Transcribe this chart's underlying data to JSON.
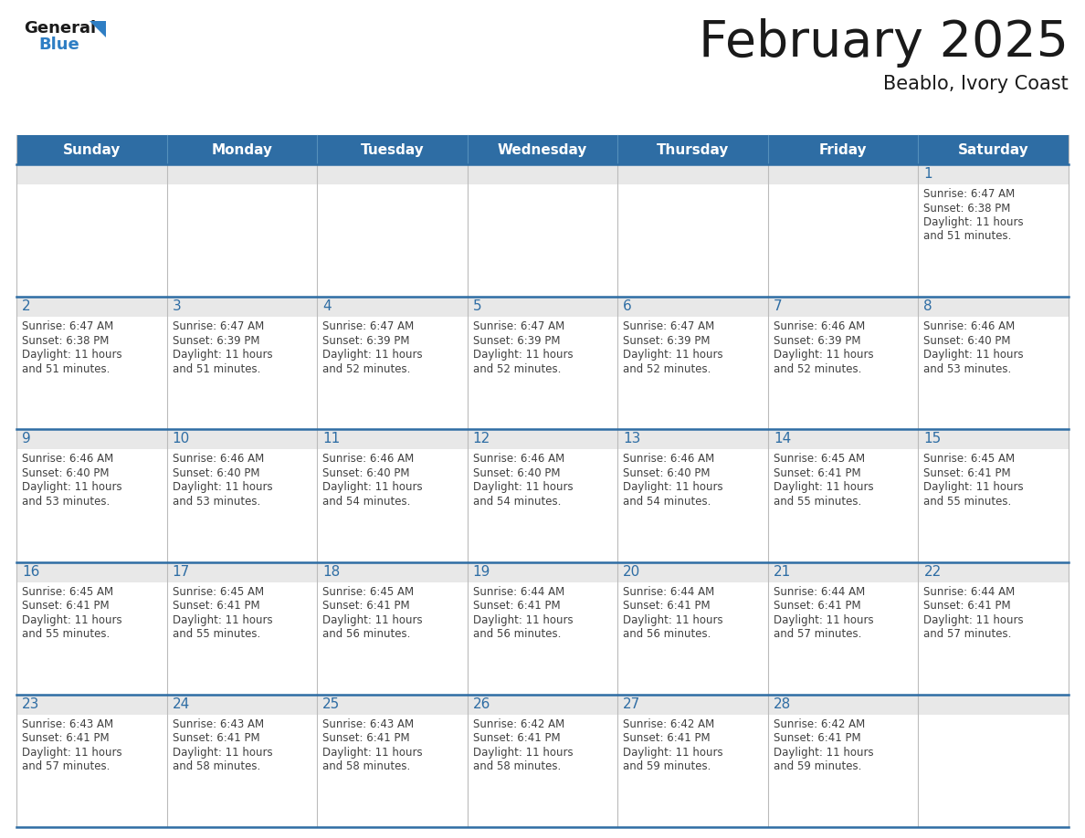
{
  "title": "February 2025",
  "subtitle": "Beablo, Ivory Coast",
  "days_of_week": [
    "Sunday",
    "Monday",
    "Tuesday",
    "Wednesday",
    "Thursday",
    "Friday",
    "Saturday"
  ],
  "header_bg_color": "#2E6DA4",
  "header_text_color": "#FFFFFF",
  "cell_bg_color": "#FFFFFF",
  "cell_top_bg_color": "#E8E8E8",
  "cell_border_color": "#AAAAAA",
  "row_line_color": "#2E6DA4",
  "day_number_color": "#2E6DA4",
  "info_text_color": "#404040",
  "title_color": "#1a1a1a",
  "subtitle_color": "#1a1a1a",
  "logo_general_color": "#1a1a1a",
  "logo_blue_color": "#2E7EC4",
  "background_color": "#FFFFFF",
  "calendar_data": [
    [
      null,
      null,
      null,
      null,
      null,
      null,
      {
        "day": 1,
        "sunrise": "6:47 AM",
        "sunset": "6:38 PM",
        "daylight": "11 hours and 51 minutes."
      }
    ],
    [
      {
        "day": 2,
        "sunrise": "6:47 AM",
        "sunset": "6:38 PM",
        "daylight": "11 hours and 51 minutes."
      },
      {
        "day": 3,
        "sunrise": "6:47 AM",
        "sunset": "6:39 PM",
        "daylight": "11 hours and 51 minutes."
      },
      {
        "day": 4,
        "sunrise": "6:47 AM",
        "sunset": "6:39 PM",
        "daylight": "11 hours and 52 minutes."
      },
      {
        "day": 5,
        "sunrise": "6:47 AM",
        "sunset": "6:39 PM",
        "daylight": "11 hours and 52 minutes."
      },
      {
        "day": 6,
        "sunrise": "6:47 AM",
        "sunset": "6:39 PM",
        "daylight": "11 hours and 52 minutes."
      },
      {
        "day": 7,
        "sunrise": "6:46 AM",
        "sunset": "6:39 PM",
        "daylight": "11 hours and 52 minutes."
      },
      {
        "day": 8,
        "sunrise": "6:46 AM",
        "sunset": "6:40 PM",
        "daylight": "11 hours and 53 minutes."
      }
    ],
    [
      {
        "day": 9,
        "sunrise": "6:46 AM",
        "sunset": "6:40 PM",
        "daylight": "11 hours and 53 minutes."
      },
      {
        "day": 10,
        "sunrise": "6:46 AM",
        "sunset": "6:40 PM",
        "daylight": "11 hours and 53 minutes."
      },
      {
        "day": 11,
        "sunrise": "6:46 AM",
        "sunset": "6:40 PM",
        "daylight": "11 hours and 54 minutes."
      },
      {
        "day": 12,
        "sunrise": "6:46 AM",
        "sunset": "6:40 PM",
        "daylight": "11 hours and 54 minutes."
      },
      {
        "day": 13,
        "sunrise": "6:46 AM",
        "sunset": "6:40 PM",
        "daylight": "11 hours and 54 minutes."
      },
      {
        "day": 14,
        "sunrise": "6:45 AM",
        "sunset": "6:41 PM",
        "daylight": "11 hours and 55 minutes."
      },
      {
        "day": 15,
        "sunrise": "6:45 AM",
        "sunset": "6:41 PM",
        "daylight": "11 hours and 55 minutes."
      }
    ],
    [
      {
        "day": 16,
        "sunrise": "6:45 AM",
        "sunset": "6:41 PM",
        "daylight": "11 hours and 55 minutes."
      },
      {
        "day": 17,
        "sunrise": "6:45 AM",
        "sunset": "6:41 PM",
        "daylight": "11 hours and 55 minutes."
      },
      {
        "day": 18,
        "sunrise": "6:45 AM",
        "sunset": "6:41 PM",
        "daylight": "11 hours and 56 minutes."
      },
      {
        "day": 19,
        "sunrise": "6:44 AM",
        "sunset": "6:41 PM",
        "daylight": "11 hours and 56 minutes."
      },
      {
        "day": 20,
        "sunrise": "6:44 AM",
        "sunset": "6:41 PM",
        "daylight": "11 hours and 56 minutes."
      },
      {
        "day": 21,
        "sunrise": "6:44 AM",
        "sunset": "6:41 PM",
        "daylight": "11 hours and 57 minutes."
      },
      {
        "day": 22,
        "sunrise": "6:44 AM",
        "sunset": "6:41 PM",
        "daylight": "11 hours and 57 minutes."
      }
    ],
    [
      {
        "day": 23,
        "sunrise": "6:43 AM",
        "sunset": "6:41 PM",
        "daylight": "11 hours and 57 minutes."
      },
      {
        "day": 24,
        "sunrise": "6:43 AM",
        "sunset": "6:41 PM",
        "daylight": "11 hours and 58 minutes."
      },
      {
        "day": 25,
        "sunrise": "6:43 AM",
        "sunset": "6:41 PM",
        "daylight": "11 hours and 58 minutes."
      },
      {
        "day": 26,
        "sunrise": "6:42 AM",
        "sunset": "6:41 PM",
        "daylight": "11 hours and 58 minutes."
      },
      {
        "day": 27,
        "sunrise": "6:42 AM",
        "sunset": "6:41 PM",
        "daylight": "11 hours and 59 minutes."
      },
      {
        "day": 28,
        "sunrise": "6:42 AM",
        "sunset": "6:41 PM",
        "daylight": "11 hours and 59 minutes."
      },
      null
    ]
  ],
  "num_rows": 5,
  "num_cols": 7
}
